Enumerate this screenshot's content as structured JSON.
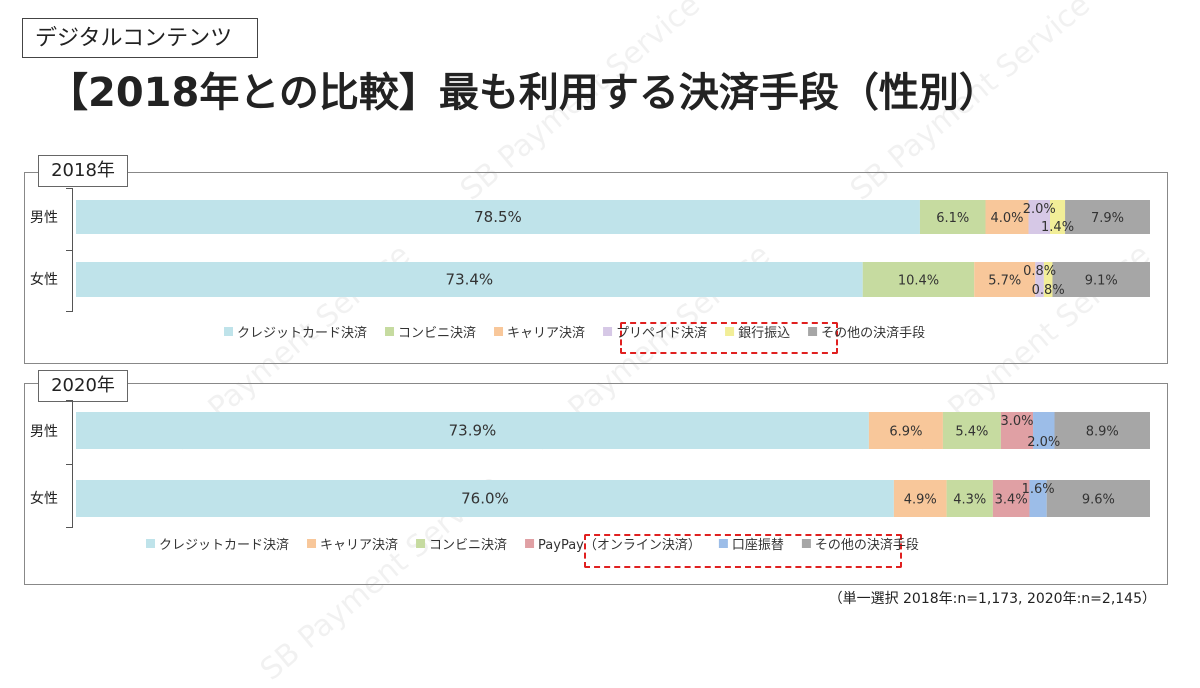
{
  "header": {
    "category": "デジタルコンテンツ",
    "title": "【2018年との比較】最も利用する決済手段（性別）"
  },
  "watermark": "SB Payment Service",
  "footnote": "（単一選択 2018年:n=1,173, 2020年:n=2,145）",
  "colors": {
    "credit": "#bfe3ea",
    "konbini": "#c6dba0",
    "carrier": "#f8c79a",
    "prepaid": "#d6c8e6",
    "bank": "#f2ee98",
    "other": "#a6a6a6",
    "paypay": "#e0a0a4",
    "kouza": "#9cbde8",
    "highlight": "#e02020"
  },
  "chart_data": [
    {
      "type": "bar",
      "orientation": "horizontal",
      "stacked": true,
      "normalized": true,
      "panel_label": "2018年",
      "categories": [
        "男性",
        "女性"
      ],
      "series": [
        {
          "name": "クレジットカード決済",
          "color_key": "credit",
          "values": [
            78.5,
            73.4
          ]
        },
        {
          "name": "コンビニ決済",
          "color_key": "konbini",
          "values": [
            6.1,
            10.4
          ]
        },
        {
          "name": "キャリア決済",
          "color_key": "carrier",
          "values": [
            4.0,
            5.7
          ]
        },
        {
          "name": "プリペイド決済",
          "color_key": "prepaid",
          "values": [
            2.0,
            0.8
          ]
        },
        {
          "name": "銀行振込",
          "color_key": "bank",
          "values": [
            1.4,
            0.8
          ]
        },
        {
          "name": "その他の決済手段",
          "color_key": "other",
          "values": [
            7.9,
            9.1
          ]
        }
      ],
      "highlighted_legend": [
        "プリペイド決済",
        "銀行振込"
      ],
      "xlim": [
        0,
        100
      ],
      "legend": "bottom"
    },
    {
      "type": "bar",
      "orientation": "horizontal",
      "stacked": true,
      "normalized": true,
      "panel_label": "2020年",
      "categories": [
        "男性",
        "女性"
      ],
      "series": [
        {
          "name": "クレジットカード決済",
          "color_key": "credit",
          "values": [
            73.9,
            76.0
          ]
        },
        {
          "name": "キャリア決済",
          "color_key": "carrier",
          "values": [
            6.9,
            4.9
          ]
        },
        {
          "name": "コンビニ決済",
          "color_key": "konbini",
          "values": [
            5.4,
            4.3
          ]
        },
        {
          "name": "PayPay（オンライン決済）",
          "color_key": "paypay",
          "values": [
            3.0,
            3.4
          ]
        },
        {
          "name": "口座振替",
          "color_key": "kouza",
          "values": [
            2.0,
            1.6
          ]
        },
        {
          "name": "その他の決済手段",
          "color_key": "other",
          "values": [
            8.9,
            9.6
          ]
        }
      ],
      "highlighted_legend": [
        "PayPay（オンライン決済）",
        "口座振替"
      ],
      "xlim": [
        0,
        100
      ],
      "legend": "bottom"
    }
  ]
}
